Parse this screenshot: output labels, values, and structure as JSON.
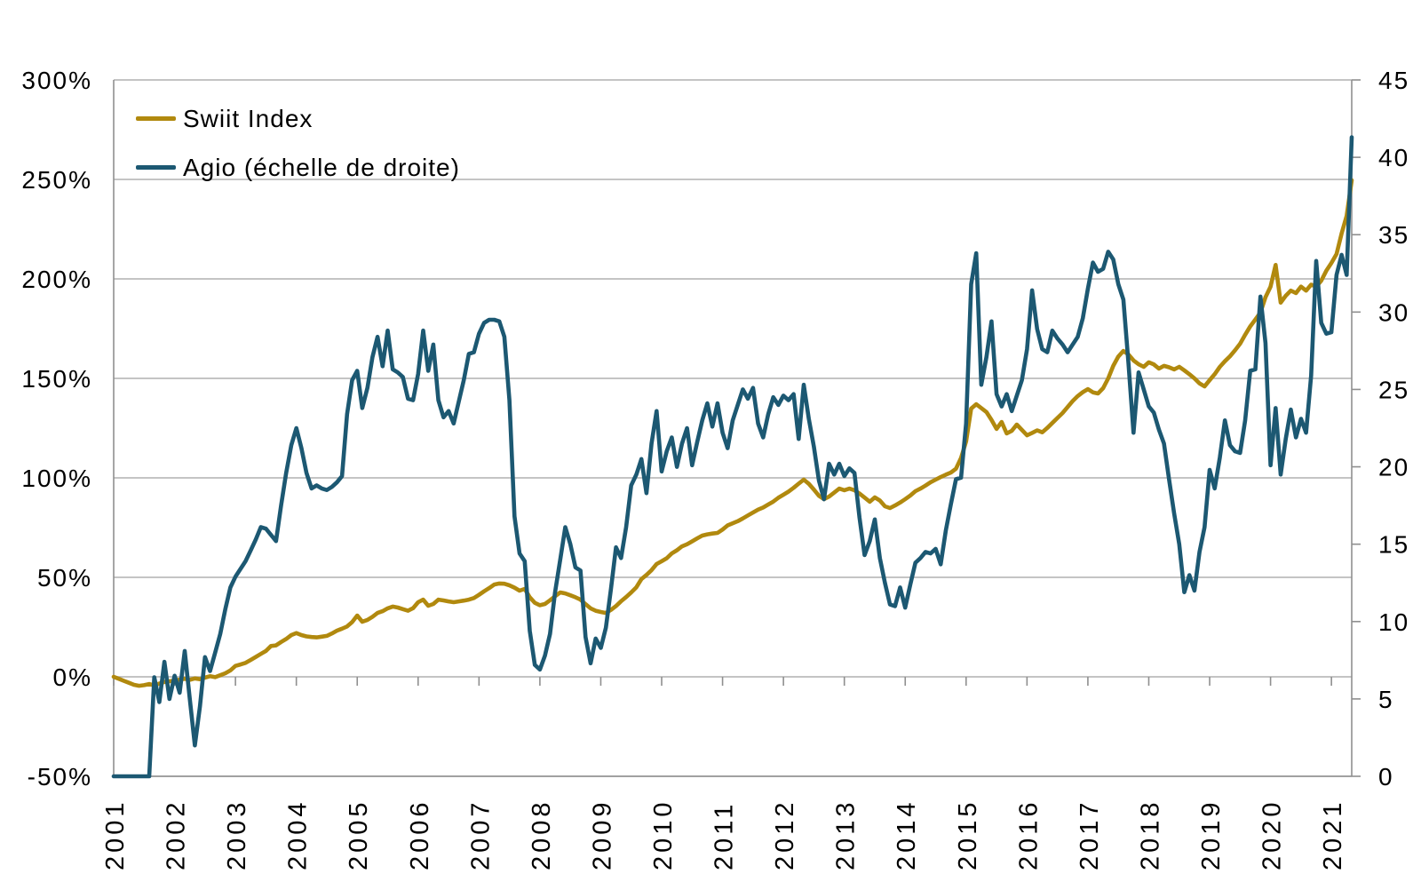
{
  "chart_data": {
    "type": "line",
    "title": "",
    "x_start_year": 2001,
    "points_per_year": 12,
    "x_tick_labels": [
      "2001",
      "2002",
      "2003",
      "2004",
      "2005",
      "2006",
      "2007",
      "2008",
      "2009",
      "2010",
      "2011",
      "2012",
      "2013",
      "2014",
      "2015",
      "2016",
      "2017",
      "2018",
      "2019",
      "2020",
      "2021"
    ],
    "left_axis": {
      "min": -50,
      "max": 300,
      "step": 50,
      "format": "percent",
      "tick_labels": [
        "300%",
        "250%",
        "200%",
        "150%",
        "100%",
        "50%",
        "0%",
        "-50%"
      ]
    },
    "right_axis": {
      "min": 0,
      "max": 45,
      "step": 5,
      "tick_labels": [
        "45",
        "40",
        "35",
        "30",
        "25",
        "20",
        "15",
        "10",
        "5",
        "0"
      ]
    },
    "grid": "horizontal",
    "legend_position": "top-left-inside",
    "series": [
      {
        "name": "Swiit Index",
        "axis": "left",
        "color": "#B1890E",
        "values": [
          0,
          -1,
          -2,
          -3,
          -4,
          -4.5,
          -4.2,
          -3.6,
          -4.3,
          -3.4,
          -2.6,
          -2.2,
          -2,
          -1.4,
          -1,
          -1.5,
          -0.8,
          -1.2,
          -0.4,
          0.3,
          -0.2,
          0.8,
          1.8,
          3.2,
          5.5,
          6.2,
          7,
          8.5,
          10,
          11.5,
          13,
          15.5,
          15.8,
          17.5,
          19,
          21,
          22,
          21,
          20.3,
          20,
          19.8,
          20.2,
          20.6,
          21.8,
          23.2,
          24.2,
          25.3,
          27.5,
          30.8,
          27.7,
          28.6,
          30.2,
          32.1,
          33,
          34.4,
          35.3,
          34.8,
          34,
          33.2,
          34.5,
          37.5,
          38.8,
          35.7,
          36.6,
          38.8,
          38.4,
          37.9,
          37.5,
          37.9,
          38.3,
          38.8,
          39.6,
          41.2,
          43,
          44.6,
          46.4,
          46.9,
          46.8,
          46,
          44.8,
          43.3,
          44.2,
          40,
          37.2,
          36,
          36.6,
          38.5,
          40.5,
          42.4,
          41.9,
          41,
          40,
          38.8,
          36.5,
          34.4,
          33.2,
          32.6,
          32.1,
          33.6,
          35.6,
          38,
          40.1,
          42.4,
          45,
          49.1,
          51.2,
          53.6,
          56.7,
          58.1,
          59.6,
          62,
          63.6,
          65.6,
          66.6,
          68.1,
          69.6,
          71,
          71.6,
          72,
          72.3,
          74,
          76.1,
          77.2,
          78.2,
          79.6,
          81.1,
          82.6,
          84,
          85.1,
          86.6,
          88.1,
          90,
          91.5,
          93.1,
          95,
          97.1,
          99.1,
          97,
          94.1,
          91,
          89.3,
          90.6,
          92.6,
          94.6,
          93.8,
          94.6,
          93.8,
          92.1,
          90.1,
          88,
          90.2,
          88.6,
          85.7,
          84.8,
          86.1,
          87.6,
          89.3,
          91.1,
          93.3,
          94.6,
          96.1,
          97.8,
          99.1,
          100.4,
          101.6,
          102.7,
          104.6,
          110,
          118.3,
          134.8,
          137,
          135.1,
          133.1,
          129.1,
          124.6,
          128.1,
          122.3,
          123.6,
          126.8,
          124.1,
          121.4,
          122.6,
          123.9,
          122.9,
          125.1,
          127.6,
          130.1,
          132.6,
          135.6,
          138.6,
          141.1,
          143.1,
          144.6,
          143,
          142.4,
          145.1,
          150,
          156.3,
          161,
          163.8,
          162,
          159,
          157.1,
          155.8,
          158.1,
          157,
          154.9,
          156.3,
          155.6,
          154.5,
          155.8,
          154,
          152.1,
          150,
          147.5,
          146,
          149.1,
          152.1,
          155.8,
          158.6,
          161.1,
          164.1,
          167.4,
          171.9,
          176.1,
          179.6,
          183.1,
          190.8,
          196.1,
          207,
          188.1,
          191.5,
          194.1,
          192.9,
          196.1,
          194.1,
          197.1,
          196.1,
          199.1,
          204.1,
          208,
          212.5,
          222.8,
          231.7,
          249.6
        ]
      },
      {
        "name": "Agio (échelle de droite)",
        "axis": "right",
        "color": "#1C5872",
        "values": [
          0,
          0,
          0,
          0,
          0,
          0,
          0,
          0,
          6.4,
          4.8,
          7.4,
          5,
          6.5,
          5.4,
          8.1,
          5,
          2,
          4.5,
          7.7,
          6.8,
          8,
          9.2,
          10.8,
          12.2,
          12.9,
          13.4,
          13.9,
          14.6,
          15.3,
          16.1,
          16,
          15.6,
          15.2,
          17.5,
          19.6,
          21.4,
          22.5,
          21.2,
          19.6,
          18.6,
          18.8,
          18.6,
          18.5,
          18.7,
          19,
          19.4,
          23.4,
          25.6,
          26.2,
          23.8,
          25.1,
          27.1,
          28.4,
          26.5,
          28.8,
          26.3,
          26.1,
          25.8,
          24.4,
          24.3,
          26,
          28.8,
          26.2,
          27.9,
          24.3,
          23.2,
          23.6,
          22.8,
          24.2,
          25.6,
          27.3,
          27.4,
          28.6,
          29.3,
          29.5,
          29.5,
          29.4,
          28.4,
          24.3,
          16.8,
          14.4,
          13.9,
          9.4,
          7.2,
          6.9,
          7.8,
          9.2,
          11.9,
          14,
          16.1,
          15,
          13.5,
          13.3,
          9,
          7.3,
          8.9,
          8.3,
          9.6,
          12.1,
          14.8,
          14.1,
          16.1,
          18.8,
          19.5,
          20.5,
          18.3,
          21.5,
          23.6,
          19.7,
          21,
          21.9,
          20,
          21.5,
          22.5,
          20.1,
          21.6,
          23,
          24.1,
          22.6,
          24.1,
          22.2,
          21.2,
          23,
          24,
          25,
          24.4,
          25.1,
          22.8,
          21.9,
          23.4,
          24.5,
          24,
          24.6,
          24.3,
          24.7,
          21.8,
          25.3,
          23.1,
          21.3,
          19.1,
          17.9,
          20.2,
          19.5,
          20.2,
          19.4,
          19.9,
          19.6,
          16.7,
          14.3,
          15.2,
          16.6,
          14.1,
          12.5,
          11.1,
          11,
          12.2,
          10.9,
          12.4,
          13.8,
          14.1,
          14.5,
          14.4,
          14.7,
          13.7,
          15.9,
          17.6,
          19.2,
          19.3,
          22.8,
          31.8,
          33.8,
          25.3,
          27.1,
          29.4,
          24.7,
          23.9,
          24.7,
          23.6,
          24.6,
          25.6,
          27.6,
          31.4,
          28.9,
          27.6,
          27.4,
          28.8,
          28.3,
          27.9,
          27.4,
          27.9,
          28.4,
          29.6,
          31.5,
          33.2,
          32.6,
          32.8,
          33.9,
          33.4,
          31.8,
          30.8,
          26.7,
          22.2,
          26.1,
          25,
          23.9,
          23.5,
          22.4,
          21.5,
          19.2,
          17,
          15,
          11.9,
          13,
          12,
          14.5,
          16.1,
          19.8,
          18.6,
          20.6,
          23,
          21.4,
          21,
          20.9,
          23,
          26.2,
          26.3,
          31,
          28,
          20.1,
          23.8,
          19.5,
          21.8,
          23.7,
          21.9,
          23.1,
          22.2,
          25.9,
          33.3,
          29.3,
          28.6,
          28.7,
          32.4,
          33.7,
          32.4,
          41.3
        ]
      }
    ]
  },
  "colors": {
    "background": "#FFFFFF",
    "grid_line": "#B0B0B0",
    "axis_line": "#8F8F8F",
    "tick_label": "#000000"
  }
}
